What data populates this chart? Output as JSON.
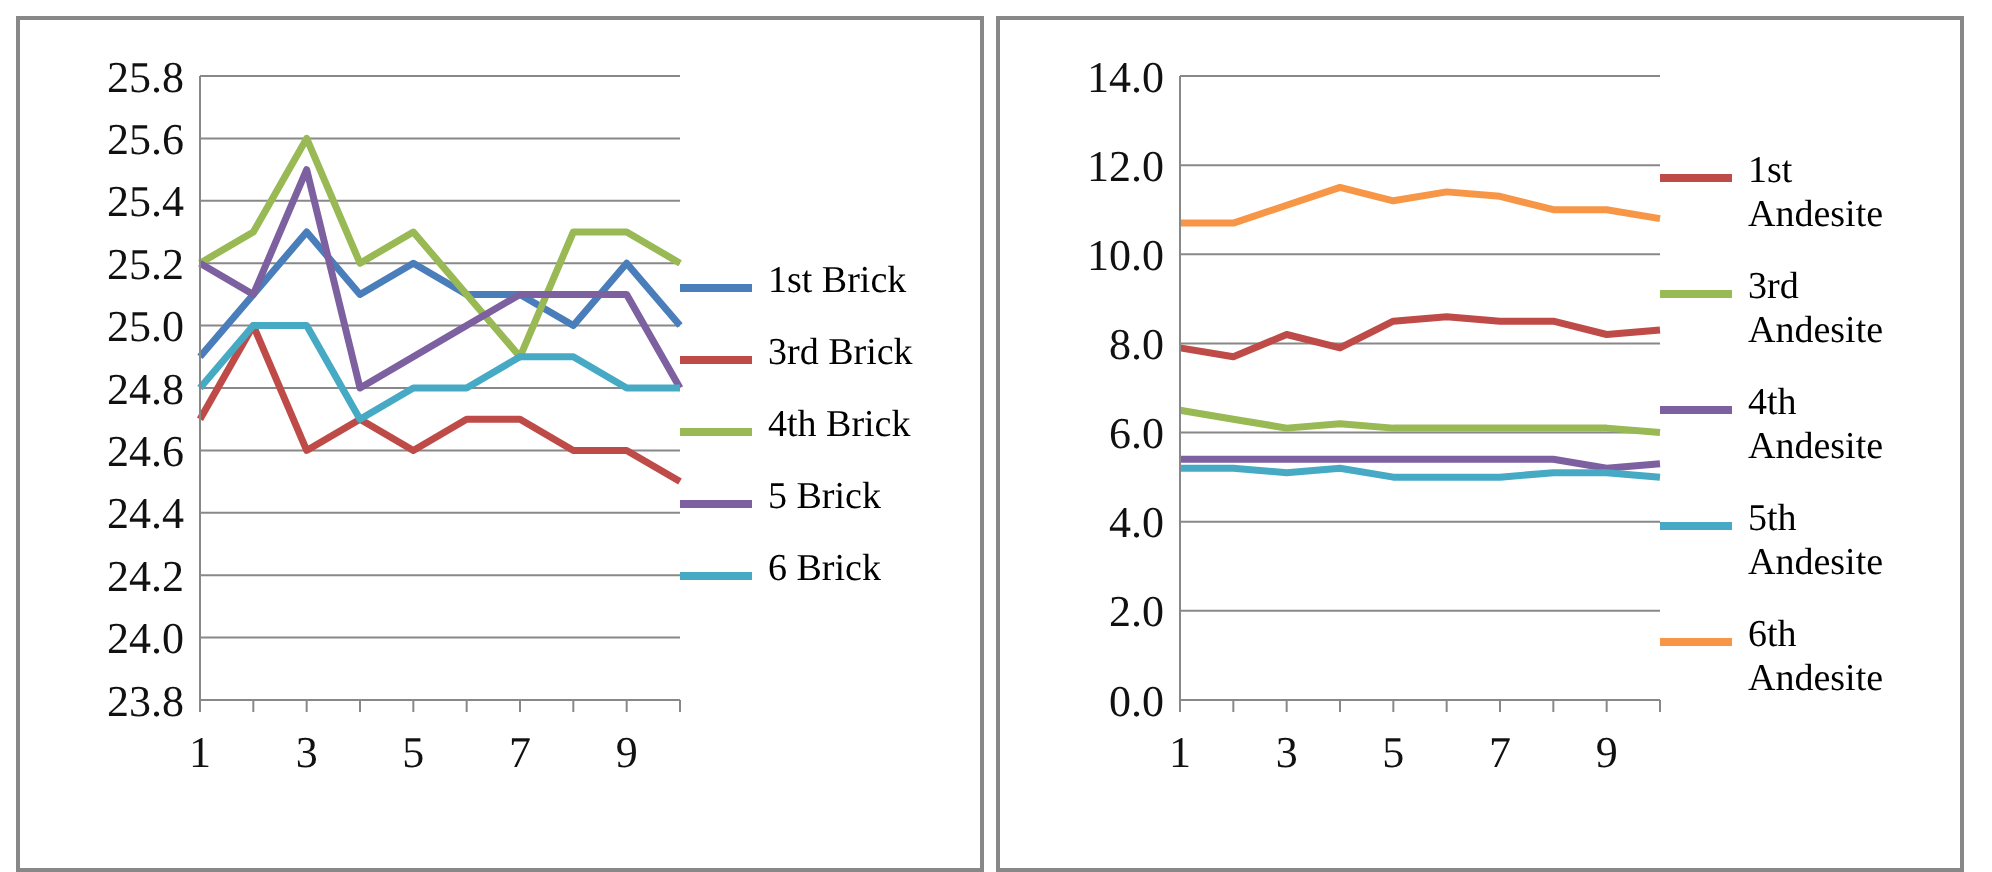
{
  "chart_data": [
    {
      "type": "line",
      "categories": [
        "1",
        null,
        "3",
        null,
        "5",
        null,
        "7",
        null,
        "9",
        null
      ],
      "ylim": [
        23.8,
        25.8
      ],
      "yticks": [
        {
          "value": 23.8,
          "label": "23.8"
        },
        {
          "value": 24,
          "label": "24.0"
        },
        {
          "value": 24.2,
          "label": "24.2"
        },
        {
          "value": 24.4,
          "label": "24.4"
        },
        {
          "value": 24.6,
          "label": "24.6"
        },
        {
          "value": 24.8,
          "label": "24.8"
        },
        {
          "value": 25,
          "label": "25.0"
        },
        {
          "value": 25.2,
          "label": "25.2"
        },
        {
          "value": 25.4,
          "label": "25.4"
        },
        {
          "value": 25.6,
          "label": "25.6"
        },
        {
          "value": 25.8,
          "label": "25.8"
        }
      ],
      "grid": "y",
      "legend": "right",
      "marker": "none",
      "line_style": "solid",
      "series": [
        {
          "name": "1st Brick",
          "color": "#4a7ebb",
          "values": [
            24.9,
            25.1,
            25.3,
            25.1,
            25.2,
            25.1,
            25.1,
            25.0,
            25.2,
            25.0
          ]
        },
        {
          "name": "3rd Brick",
          "color": "#be4b48",
          "values": [
            24.7,
            25.0,
            24.6,
            24.7,
            24.6,
            24.7,
            24.7,
            24.6,
            24.6,
            24.5
          ]
        },
        {
          "name": "4th Brick",
          "color": "#98b954",
          "values": [
            25.2,
            25.3,
            25.6,
            25.2,
            25.3,
            25.1,
            24.9,
            25.3,
            25.3,
            25.2
          ]
        },
        {
          "name": "5 Brick",
          "color": "#7d60a0",
          "values": [
            25.2,
            25.1,
            25.5,
            24.8,
            24.9,
            25.0,
            25.1,
            25.1,
            25.1,
            24.8
          ]
        },
        {
          "name": "6 Brick",
          "color": "#46aac5",
          "values": [
            24.8,
            25.0,
            25.0,
            24.7,
            24.8,
            24.8,
            24.9,
            24.9,
            24.8,
            24.8
          ]
        }
      ]
    },
    {
      "type": "line",
      "categories": [
        "1",
        null,
        "3",
        null,
        "5",
        null,
        "7",
        null,
        "9",
        null
      ],
      "ylim": [
        0,
        14
      ],
      "yticks": [
        {
          "value": 0,
          "label": "0.0"
        },
        {
          "value": 2,
          "label": "2.0"
        },
        {
          "value": 4,
          "label": "4.0"
        },
        {
          "value": 6,
          "label": "6.0"
        },
        {
          "value": 8,
          "label": "8.0"
        },
        {
          "value": 10,
          "label": "10.0"
        },
        {
          "value": 12,
          "label": "12.0"
        },
        {
          "value": 14,
          "label": "14.0"
        }
      ],
      "grid": "y",
      "legend": "right",
      "marker": "none",
      "line_style": "solid",
      "series": [
        {
          "name": "1st Andesite",
          "color": "#be4b48",
          "values": [
            7.9,
            7.7,
            8.2,
            7.9,
            8.5,
            8.6,
            8.5,
            8.5,
            8.2,
            8.3
          ]
        },
        {
          "name": "3rd Andesite",
          "color": "#98b954",
          "values": [
            6.5,
            6.3,
            6.1,
            6.2,
            6.1,
            6.1,
            6.1,
            6.1,
            6.1,
            6.0
          ]
        },
        {
          "name": "4th Andesite",
          "color": "#7d60a0",
          "values": [
            5.4,
            5.4,
            5.4,
            5.4,
            5.4,
            5.4,
            5.4,
            5.4,
            5.2,
            5.3
          ]
        },
        {
          "name": "5th Andesite",
          "color": "#46aac5",
          "values": [
            5.2,
            5.2,
            5.1,
            5.2,
            5.0,
            5.0,
            5.0,
            5.1,
            5.1,
            5.0
          ]
        },
        {
          "name": "6th Andesite",
          "color": "#f79646",
          "values": [
            10.7,
            10.7,
            11.1,
            11.5,
            11.2,
            11.4,
            11.3,
            11.0,
            11.0,
            10.8
          ]
        }
      ]
    }
  ]
}
